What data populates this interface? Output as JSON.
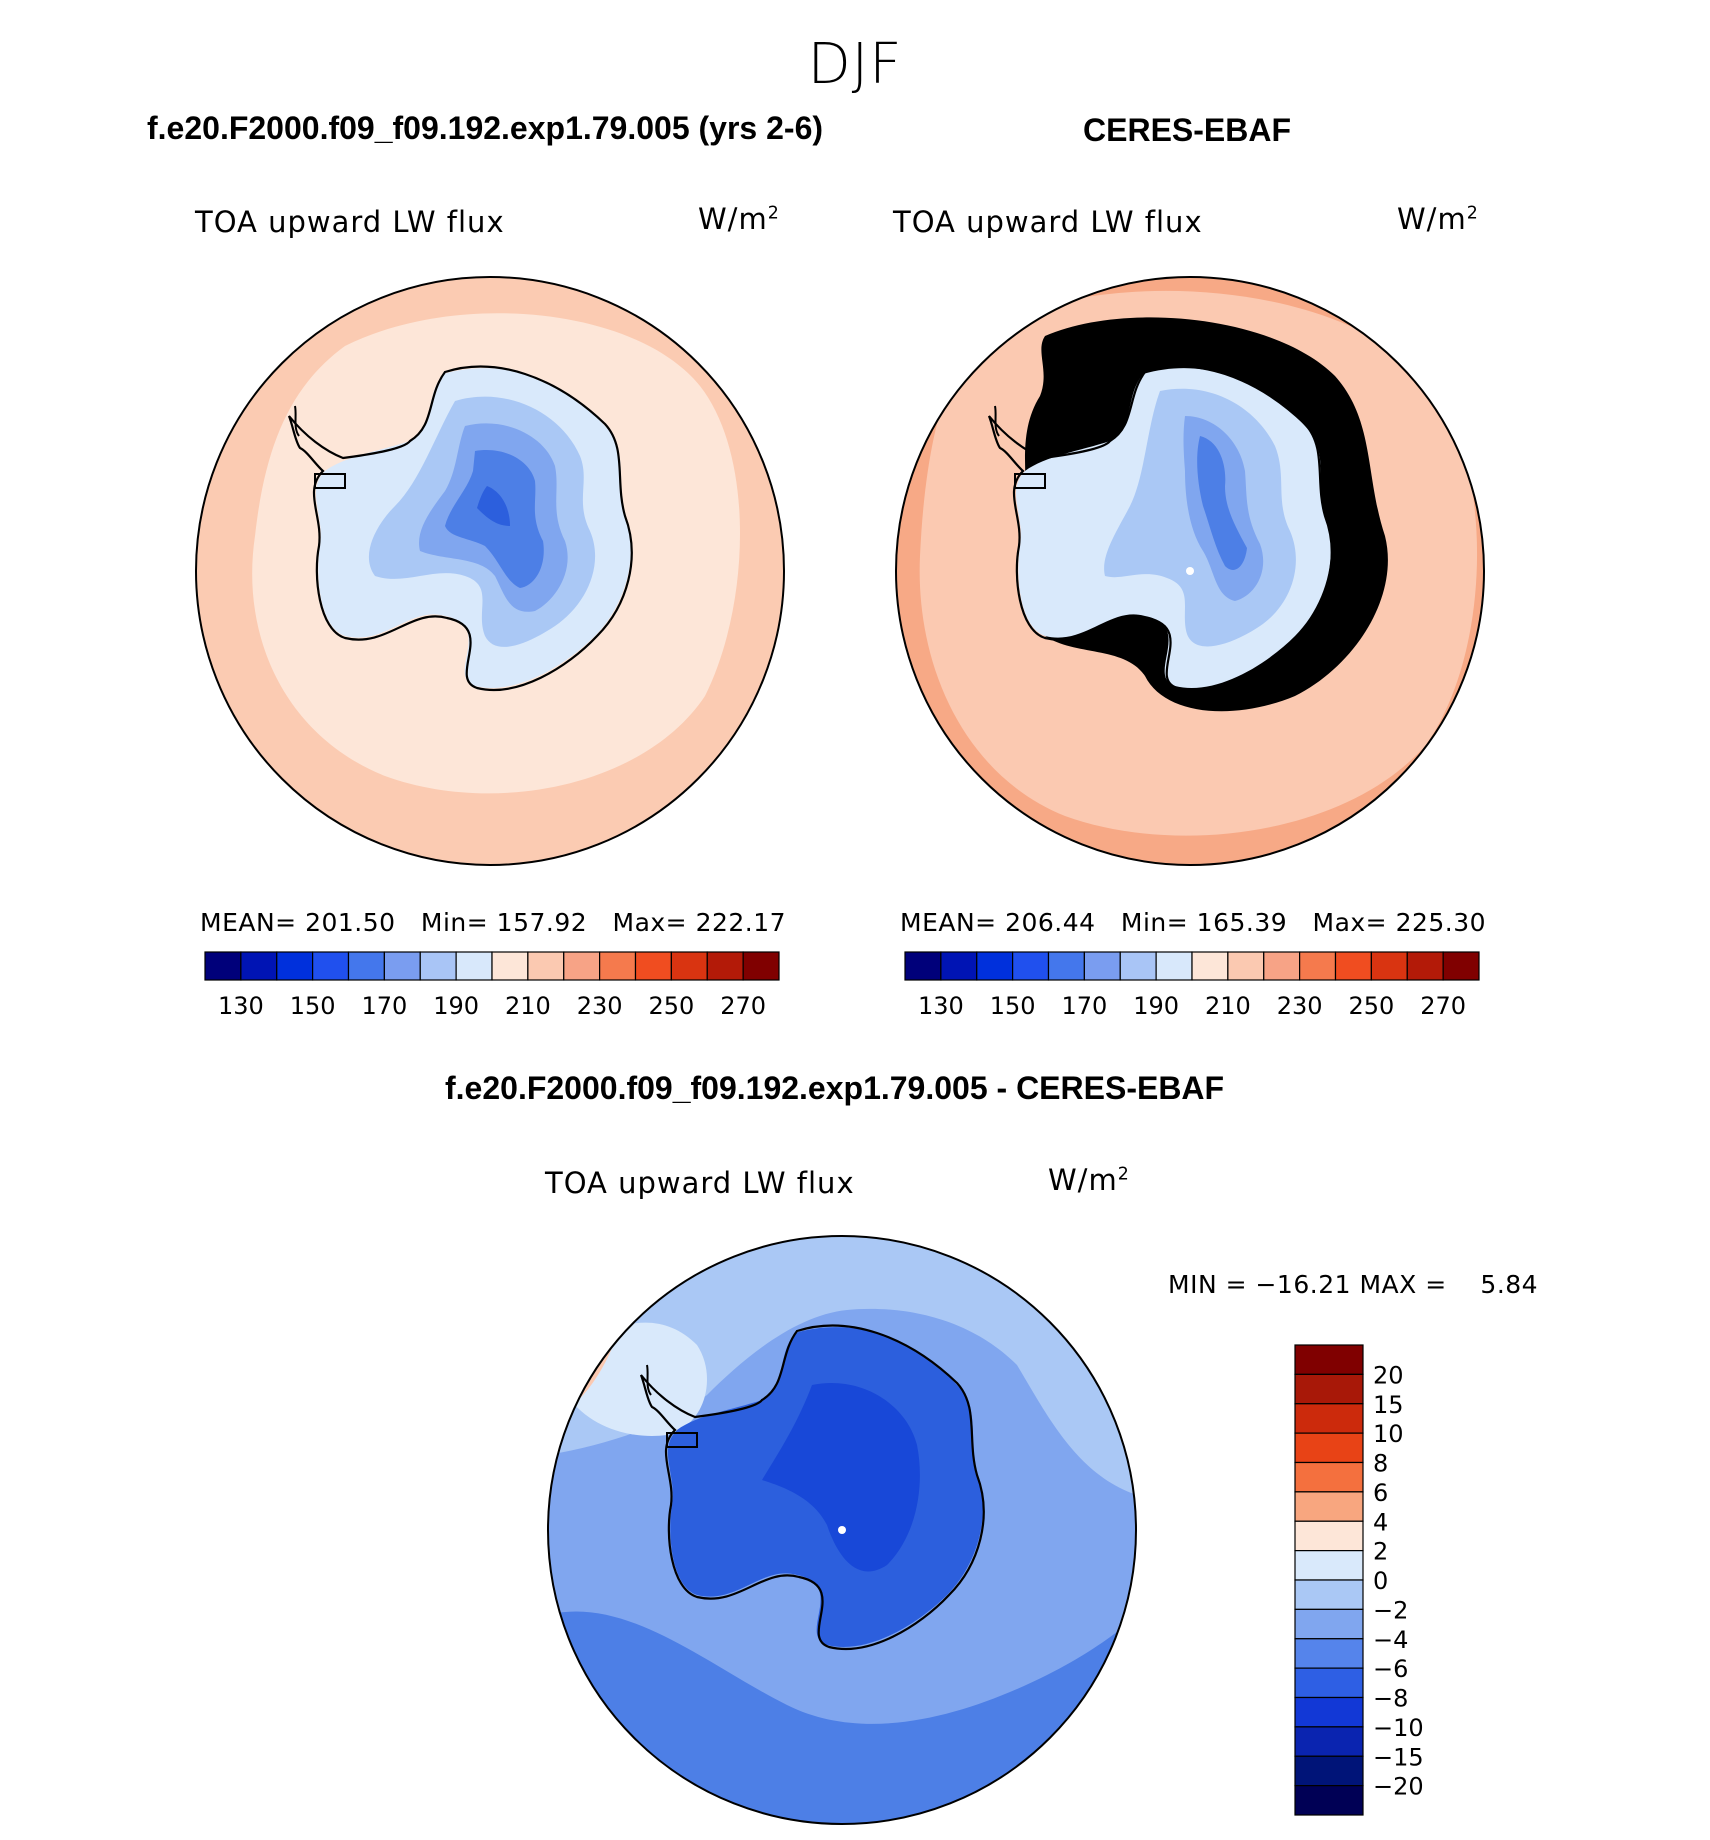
{
  "suptitle": "DJF",
  "panels": [
    {
      "title": "f.e20.F2000.f09_f09.192.exp1.79.005 (yrs 2-6)",
      "variable": "TOA upward LW flux",
      "units_base": "W/m",
      "units_exp": "2",
      "mean_label": "MEAN=",
      "mean": "201.50",
      "min_label": "Min=",
      "min": "157.92",
      "max_label": "Max=",
      "max": "222.17",
      "map_colors": {
        "outer": "#fbcbb2",
        "ocean": "#fde6d8",
        "coast": "#d9e9fb",
        "ice1": "#aac8f5",
        "ice2": "#80a6ef",
        "ice3": "#4d7fe6",
        "core": "#2c5fdd"
      }
    },
    {
      "title": "CERES-EBAF",
      "variable": "TOA upward LW flux",
      "units_base": "W/m",
      "units_exp": "2",
      "mean_label": "MEAN=",
      "mean": "206.44",
      "min_label": "Min=",
      "min": "165.39",
      "max_label": "Max=",
      "max": "225.30",
      "map_colors": {
        "outer": "#f7a986",
        "ocean": "#fbc9b1",
        "coast": "#d9e9fb",
        "ice1": "#aac8f5",
        "ice2": "#80a6ef",
        "ice3": "#4d7fe6",
        "core": "#3466e0"
      }
    }
  ],
  "colorbar_main": {
    "colors": [
      "#00007a",
      "#0014b4",
      "#0030dc",
      "#2050ee",
      "#4477ec",
      "#7a9df0",
      "#a9c5f6",
      "#d8e8fb",
      "#fde6d8",
      "#fbc9b1",
      "#f7a386",
      "#f57a4d",
      "#f04d20",
      "#d93411",
      "#b31a08",
      "#800000"
    ],
    "ticks": [
      "130",
      "150",
      "170",
      "190",
      "210",
      "230",
      "250",
      "270"
    ]
  },
  "diff": {
    "title": "f.e20.F2000.f09_f09.192.exp1.79.005 - CERES-EBAF",
    "variable": "TOA upward LW flux",
    "units_base": "W/m",
    "units_exp": "2",
    "minmax": "MIN = −16.21 MAX =    5.84",
    "map_colors": {
      "base": "#80a6ef",
      "light": "#aac8f5",
      "pale": "#d9e9fb",
      "warm": "#fbc9b1",
      "mid": "#4d7fe6",
      "land": "#2c5fdd",
      "landcore": "#1848d8"
    },
    "colorbar": {
      "colors": [
        "#800000",
        "#a81808",
        "#cc2a0c",
        "#e84316",
        "#f4703e",
        "#f8a67f",
        "#fde6d8",
        "#d9e9fb",
        "#aac8f5",
        "#80a6ef",
        "#5584eb",
        "#2e5fe4",
        "#1238d6",
        "#0a24b0",
        "#001478",
        "#000055"
      ],
      "labels": [
        "20",
        "15",
        "10",
        "8",
        "6",
        "4",
        "2",
        "0",
        "−2",
        "−4",
        "−6",
        "−8",
        "−10",
        "−15",
        "−20"
      ]
    }
  }
}
